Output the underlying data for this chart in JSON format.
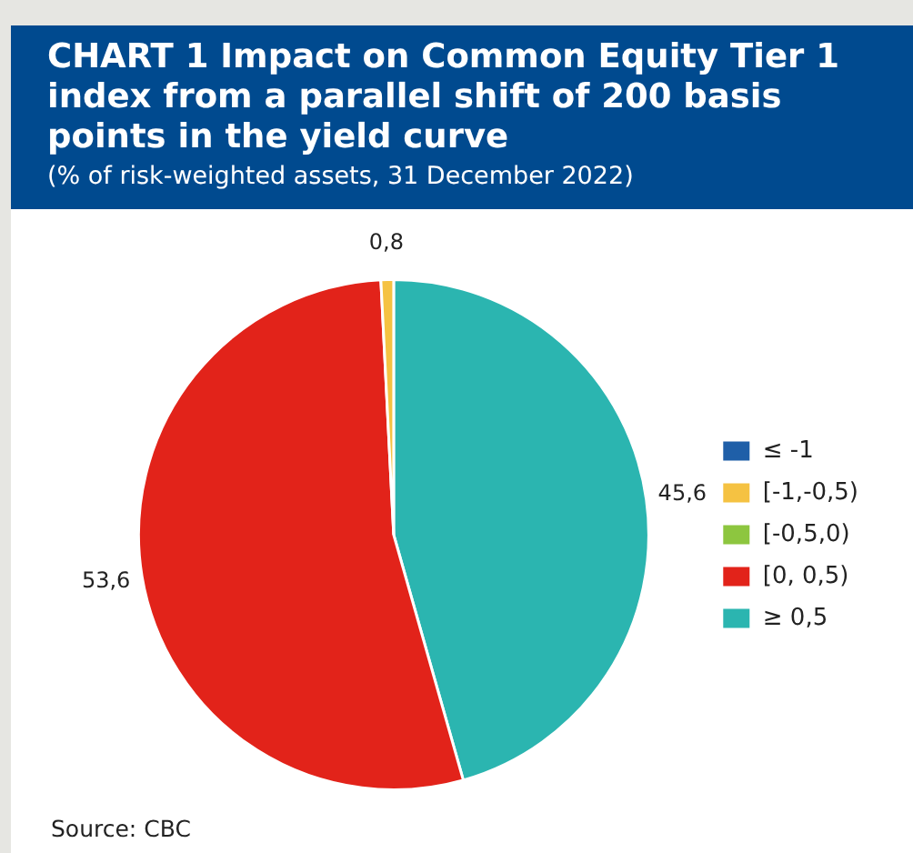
{
  "chart_data": {
    "type": "pie",
    "title": "CHART 1 Impact on Common Equity Tier 1 index from a parallel shift of 200 basis points in the yield curve",
    "subtitle": "(% of risk-weighted assets, 31 December 2022)",
    "categories": [
      "≤ -1",
      "[-1,-0,5)",
      "[-0,5,0)",
      "[0, 0,5)",
      "≥ 0,5"
    ],
    "values": [
      0,
      0.8,
      0,
      53.6,
      45.6
    ],
    "colors": [
      "#1f5fa8",
      "#f5c242",
      "#8dc63f",
      "#e2231a",
      "#2bb5b0"
    ],
    "value_labels": [
      null,
      "0,8",
      null,
      "53,6",
      "45,6"
    ],
    "legend": "right",
    "annotations": [
      "Source: CBC"
    ]
  }
}
